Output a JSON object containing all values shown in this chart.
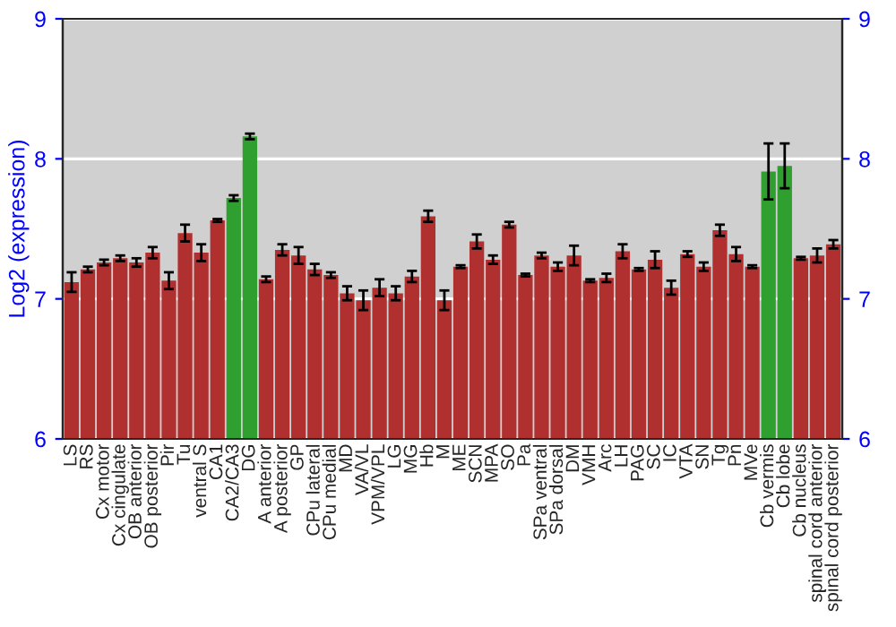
{
  "chart_data": {
    "type": "bar",
    "ylabel": "Log2 (expression)",
    "categories": [
      "LS",
      "RS",
      "Cx motor",
      "Cx cingulate",
      "OB anterior",
      "OB posterior",
      "Pir",
      "Tu",
      "ventral S",
      "CA1",
      "CA2/CA3",
      "DG",
      "A anterior",
      "A posterior",
      "GP",
      "CPu lateral",
      "CPu medial",
      "MD",
      "VA/VL",
      "VPM/VPL",
      "LG",
      "MG",
      "Hb",
      "M",
      "ME",
      "SCN",
      "MPA",
      "SO",
      "Pa",
      "SPa ventral",
      "SPa dorsal",
      "DM",
      "VMH",
      "Arc",
      "LH",
      "PAG",
      "SC",
      "IC",
      "VTA",
      "SN",
      "Tg",
      "Pn",
      "MVe",
      "Cb vermis",
      "Cb lobe",
      "Cb nucleus",
      "spinal cord anterior",
      "spinal cord posterior"
    ],
    "values": [
      7.12,
      7.21,
      7.26,
      7.29,
      7.26,
      7.33,
      7.13,
      7.47,
      7.33,
      7.56,
      7.72,
      8.16,
      7.14,
      7.35,
      7.31,
      7.21,
      7.17,
      7.04,
      6.99,
      7.08,
      7.04,
      7.16,
      7.59,
      6.99,
      7.23,
      7.41,
      7.28,
      7.53,
      7.17,
      7.31,
      7.23,
      7.31,
      7.13,
      7.15,
      7.34,
      7.21,
      7.28,
      7.08,
      7.32,
      7.23,
      7.49,
      7.32,
      7.23,
      7.91,
      7.95,
      7.29,
      7.31,
      7.39
    ],
    "errors": [
      0.07,
      0.02,
      0.02,
      0.02,
      0.03,
      0.04,
      0.06,
      0.06,
      0.06,
      0.01,
      0.02,
      0.02,
      0.02,
      0.04,
      0.06,
      0.04,
      0.02,
      0.05,
      0.07,
      0.06,
      0.05,
      0.04,
      0.04,
      0.07,
      0.01,
      0.05,
      0.03,
      0.02,
      0.01,
      0.02,
      0.03,
      0.07,
      0.01,
      0.03,
      0.05,
      0.01,
      0.06,
      0.05,
      0.02,
      0.03,
      0.04,
      0.05,
      0.01,
      0.2,
      0.16,
      0.01,
      0.05,
      0.03
    ],
    "colors": [
      "#b03030",
      "#b03030",
      "#b03030",
      "#b03030",
      "#b03030",
      "#b03030",
      "#b03030",
      "#b03030",
      "#b03030",
      "#b03030",
      "#2f9f2f",
      "#2f9f2f",
      "#b03030",
      "#b03030",
      "#b03030",
      "#b03030",
      "#b03030",
      "#b03030",
      "#b03030",
      "#b03030",
      "#b03030",
      "#b03030",
      "#b03030",
      "#b03030",
      "#b03030",
      "#b03030",
      "#b03030",
      "#b03030",
      "#b03030",
      "#b03030",
      "#b03030",
      "#b03030",
      "#b03030",
      "#b03030",
      "#b03030",
      "#b03030",
      "#b03030",
      "#b03030",
      "#b03030",
      "#b03030",
      "#b03030",
      "#b03030",
      "#b03030",
      "#2f9f2f",
      "#2f9f2f",
      "#b03030",
      "#b03030",
      "#b03030"
    ],
    "ylim": [
      6,
      9
    ],
    "yticks": [
      6,
      7,
      8,
      9
    ],
    "y2lim": [
      6,
      9
    ],
    "y2ticks": [
      6,
      7,
      8,
      9
    ],
    "grid": "y",
    "legend": false
  }
}
